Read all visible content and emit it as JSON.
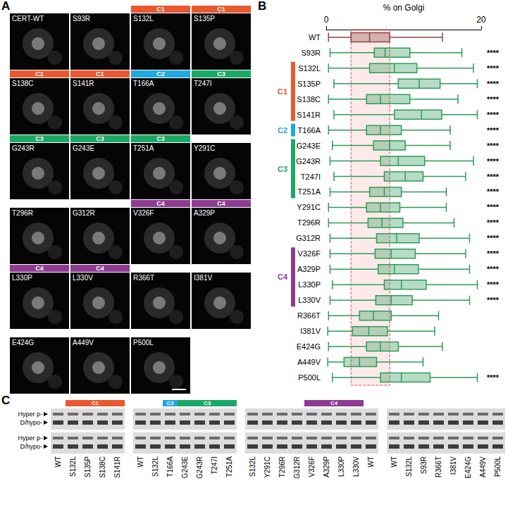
{
  "panel_a": {
    "label": "A",
    "images": [
      "CERT-WT",
      "S93R",
      "S132L",
      "S135P",
      "S138C",
      "S141R",
      "T166A",
      "T247I",
      "G243R",
      "G243E",
      "T251A",
      "Y291C",
      "T296R",
      "G312R",
      "V326F",
      "A329P",
      "L330P",
      "L330V",
      "R366T",
      "I381V",
      "E424G",
      "A449V",
      "P500L"
    ]
  },
  "chart_data": {
    "type": "boxplot",
    "title": "B",
    "orientation": "horizontal",
    "x_label": "% on Golgi",
    "xlim": [
      0,
      20
    ],
    "xticks": [
      0,
      20
    ],
    "categories": [
      "WT",
      "S93R",
      "S132L",
      "S135P",
      "S138C",
      "S141R",
      "T166A",
      "G243E",
      "G243R",
      "T247I",
      "T251A",
      "Y291C",
      "T296R",
      "G312R",
      "V326F",
      "A329P",
      "L330P",
      "L330V",
      "R366T",
      "I381V",
      "E424G",
      "A449V",
      "P500L"
    ],
    "boxes": [
      [
        0.3,
        3.2,
        5.6,
        8.2,
        15.0
      ],
      [
        0.5,
        6.2,
        7.6,
        10.8,
        17.5
      ],
      [
        0.3,
        5.6,
        8.8,
        11.7,
        19.0
      ],
      [
        1.0,
        9.3,
        12.0,
        14.7,
        19.5
      ],
      [
        0.3,
        5.2,
        7.0,
        10.8,
        17.0
      ],
      [
        1.0,
        8.8,
        12.3,
        14.9,
        19.5
      ],
      [
        0.3,
        5.2,
        7.0,
        9.7,
        16.0
      ],
      [
        0.8,
        6.1,
        8.2,
        10.2,
        16.0
      ],
      [
        0.5,
        7.0,
        9.3,
        12.7,
        19.0
      ],
      [
        1.0,
        7.5,
        10.2,
        12.5,
        18.0
      ],
      [
        0.5,
        5.6,
        7.5,
        9.7,
        15.5
      ],
      [
        0.3,
        5.2,
        7.0,
        9.5,
        15.5
      ],
      [
        0.3,
        5.4,
        7.2,
        9.9,
        16.5
      ],
      [
        0.5,
        6.5,
        9.1,
        12.0,
        18.5
      ],
      [
        0.5,
        6.3,
        8.4,
        11.5,
        18.0
      ],
      [
        0.5,
        6.7,
        8.8,
        11.9,
        18.5
      ],
      [
        0.8,
        7.5,
        9.7,
        12.9,
        19.5
      ],
      [
        0.5,
        6.4,
        8.4,
        11.1,
        18.5
      ],
      [
        0.3,
        4.3,
        6.1,
        8.4,
        14.5
      ],
      [
        0.2,
        3.4,
        5.5,
        7.9,
        14.0
      ],
      [
        0.3,
        5.2,
        7.0,
        9.3,
        15.0
      ],
      [
        0.2,
        2.3,
        4.3,
        6.5,
        12.5
      ],
      [
        0.8,
        7.0,
        9.7,
        13.4,
        19.5
      ]
    ],
    "colors": [
      "#8c4646",
      "#2e9b58",
      "#2e9b58",
      "#2e9b58",
      "#2e9b58",
      "#2e9b58",
      "#2e9b58",
      "#2e9b58",
      "#2e9b58",
      "#2e9b58",
      "#2e9b58",
      "#2e9b58",
      "#2e9b58",
      "#2e9b58",
      "#2e9b58",
      "#2e9b58",
      "#2e9b58",
      "#2e9b58",
      "#2e9b58",
      "#2e9b58",
      "#2e9b58",
      "#2e9b58",
      "#2e9b58"
    ],
    "significance": [
      null,
      "****",
      "****",
      "****",
      "****",
      "****",
      "****",
      "****",
      "****",
      "****",
      "****",
      "****",
      "****",
      "****",
      "****",
      "****",
      "****",
      "****",
      null,
      null,
      null,
      null,
      "****"
    ],
    "groups": [
      {
        "name": "C1",
        "color": "#e9582e",
        "members": [
          "S132L",
          "S135P",
          "S138C",
          "S141R"
        ]
      },
      {
        "name": "C2",
        "color": "#1ea8e0",
        "members": [
          "T166A"
        ]
      },
      {
        "name": "C3",
        "color": "#1aa865",
        "members": [
          "G243E",
          "G243R",
          "T247I",
          "T251A"
        ]
      },
      {
        "name": "C4",
        "color": "#8e3a92",
        "members": [
          "V326F",
          "A329P",
          "L330P",
          "L330V"
        ]
      }
    ]
  },
  "panel_c": {
    "label": "C",
    "row_labels": [
      [
        "Hyper p-",
        "D/hypo-"
      ],
      [
        "Hyper p-",
        "D/hypo-"
      ]
    ],
    "blots": [
      {
        "lanes": [
          "WT",
          "S132L",
          "S135P",
          "S138C",
          "S141R"
        ],
        "headers": [
          {
            "group": "C1",
            "first": "S132L",
            "last": "S141R"
          }
        ]
      },
      {
        "lanes": [
          "WT",
          "S132L",
          "T166A",
          "G243E",
          "G243R",
          "T247I",
          "T251A"
        ],
        "headers": [
          {
            "group": "C2",
            "first": "T166A",
            "last": "T166A"
          },
          {
            "group": "C3",
            "first": "G243E",
            "last": "T251A"
          }
        ]
      },
      {
        "lanes": [
          "S132L",
          "Y291C",
          "T296R",
          "G312R",
          "V326F",
          "A329P",
          "L330P",
          "L330V",
          "WT"
        ],
        "headers": [
          {
            "group": "C4",
            "first": "V326F",
            "last": "L330V"
          }
        ]
      },
      {
        "lanes": [
          "WT",
          "S132L",
          "S93R",
          "R366T",
          "I381V",
          "E424G",
          "A449V",
          "P500L"
        ],
        "headers": []
      }
    ]
  }
}
